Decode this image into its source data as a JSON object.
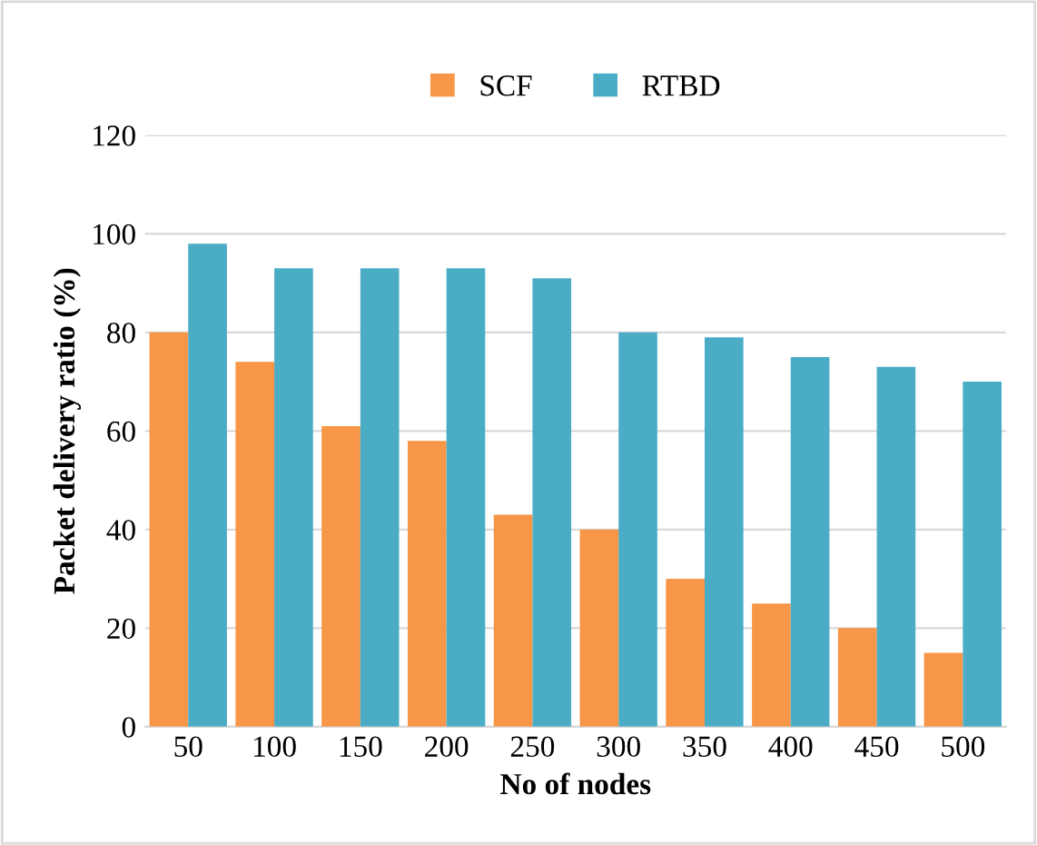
{
  "chart_data": {
    "type": "bar",
    "xlabel": "No of nodes",
    "ylabel": "Packet delivery ratio (%)",
    "categories": [
      "50",
      "100",
      "150",
      "200",
      "250",
      "300",
      "350",
      "400",
      "450",
      "500"
    ],
    "series": [
      {
        "name": "SCF",
        "color": "#f79646",
        "values": [
          80,
          74,
          61,
          58,
          43,
          40,
          30,
          25,
          20,
          15
        ]
      },
      {
        "name": "RTBD",
        "color": "#4bacc6",
        "values": [
          98,
          93,
          93,
          93,
          91,
          80,
          79,
          75,
          73,
          70
        ]
      }
    ],
    "ylim": [
      0,
      120
    ],
    "yticks": [
      0,
      20,
      40,
      60,
      80,
      100,
      120
    ],
    "grid": "y",
    "legend": "top"
  }
}
